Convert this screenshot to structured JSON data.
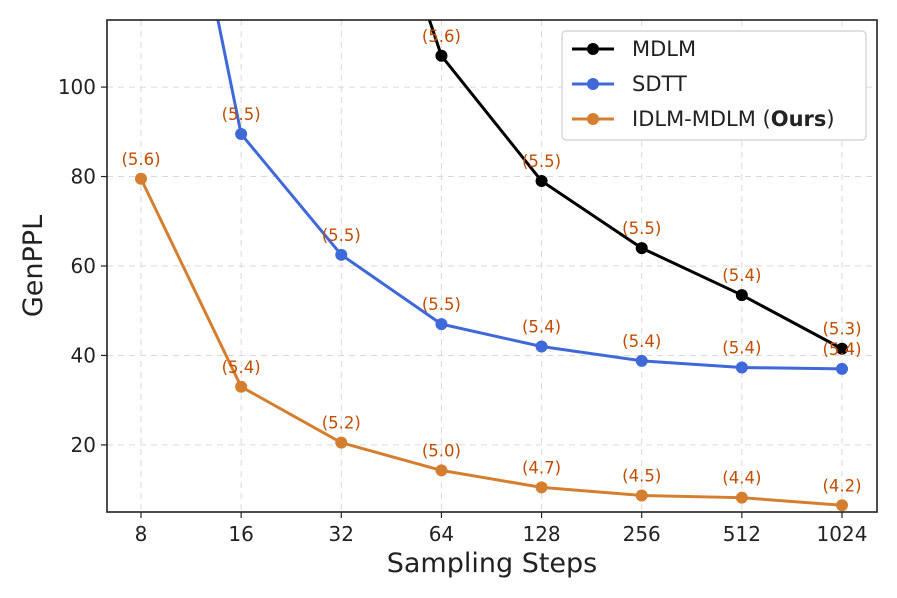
{
  "chart_data": {
    "type": "line",
    "xlabel": "Sampling Steps",
    "ylabel": "GenPPL",
    "categories": [
      "8",
      "16",
      "32",
      "64",
      "128",
      "256",
      "512",
      "1024"
    ],
    "yticks": [
      20,
      40,
      60,
      80,
      100
    ],
    "ylim": [
      5,
      115
    ],
    "grid": true,
    "legend_position": "top-right",
    "series": [
      {
        "name": "MDLM",
        "color": "#000000",
        "values": [
          null,
          null,
          null,
          107,
          79,
          64,
          53.5,
          41.5
        ],
        "labels": [
          null,
          null,
          null,
          "(5.6)",
          "(5.5)",
          "(5.5)",
          "(5.4)",
          "(5.3)"
        ],
        "offscreen_start": {
          "x_index": 2.85,
          "value": 117
        }
      },
      {
        "name": "SDTT",
        "color": "#3f68d8",
        "values": [
          null,
          89.5,
          62.5,
          47,
          42,
          38.8,
          37.3,
          37
        ],
        "labels": [
          null,
          "(5.5)",
          "(5.5)",
          "(5.5)",
          "(5.4)",
          "(5.4)",
          "(5.4)",
          "(5.4)"
        ],
        "offscreen_start": {
          "x_index": 0.75,
          "value": 117
        }
      },
      {
        "name": "IDLM-MDLM",
        "name_suffix": "Ours",
        "color": "#d47f30",
        "values": [
          79.5,
          33,
          20.5,
          14.3,
          10.5,
          8.7,
          8.2,
          6.5
        ],
        "labels": [
          "(5.6)",
          "(5.4)",
          "(5.2)",
          "(5.0)",
          "(4.7)",
          "(4.5)",
          "(4.4)",
          "(4.2)"
        ]
      }
    ]
  }
}
